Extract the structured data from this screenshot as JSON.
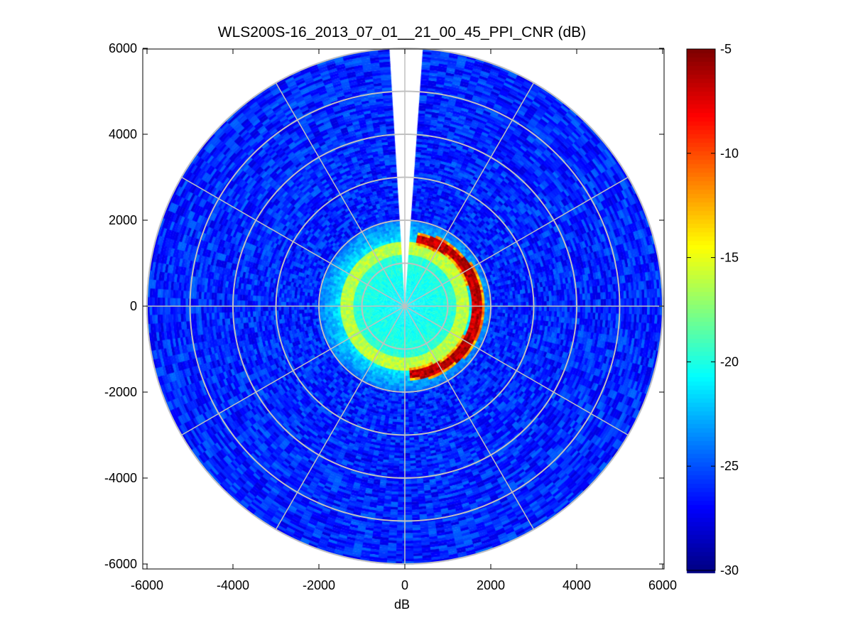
{
  "chart_data": {
    "type": "heatmap",
    "subtype": "polar-ppi",
    "title": "WLS200S-16_2013_07_01__21_00_45_PPI_CNR (dB)",
    "xlabel": "dB",
    "ylabel": "",
    "xlim": [
      -6000,
      6000
    ],
    "ylim": [
      -6000,
      6000
    ],
    "xticks": [
      "-6000",
      "-4000",
      "-2000",
      "0",
      "2000",
      "4000",
      "6000"
    ],
    "yticks": [
      "6000",
      "4000",
      "2000",
      "0",
      "-2000",
      "-4000",
      "-6000"
    ],
    "max_range": 6000,
    "range_rings": [
      1000,
      2000,
      3000,
      4000,
      5000,
      6000
    ],
    "spoke_azimuths_deg": [
      0,
      30,
      60,
      90,
      120,
      150,
      180,
      210,
      240,
      270,
      300,
      330
    ],
    "missing_sector_deg": [
      -4,
      4
    ],
    "colorbar": {
      "colormap": "jet",
      "range": [
        -30,
        -5
      ],
      "ticks": [
        "-5",
        "-10",
        "-15",
        "-20",
        "-25",
        "-30"
      ]
    },
    "field_profile": {
      "near_field_cnr_db": -21,
      "near_field_max_range": 1200,
      "transition_band_cnr_db": -16,
      "transition_band_range": [
        1200,
        1500
      ],
      "hard_target_arc_cnr_db": -5,
      "hard_target_arc_range": [
        1450,
        1750
      ],
      "hard_target_arc_azimuth_deg": [
        10,
        175
      ],
      "far_field_cnr_db": -26,
      "far_field_range": [
        2000,
        6000
      ]
    }
  }
}
